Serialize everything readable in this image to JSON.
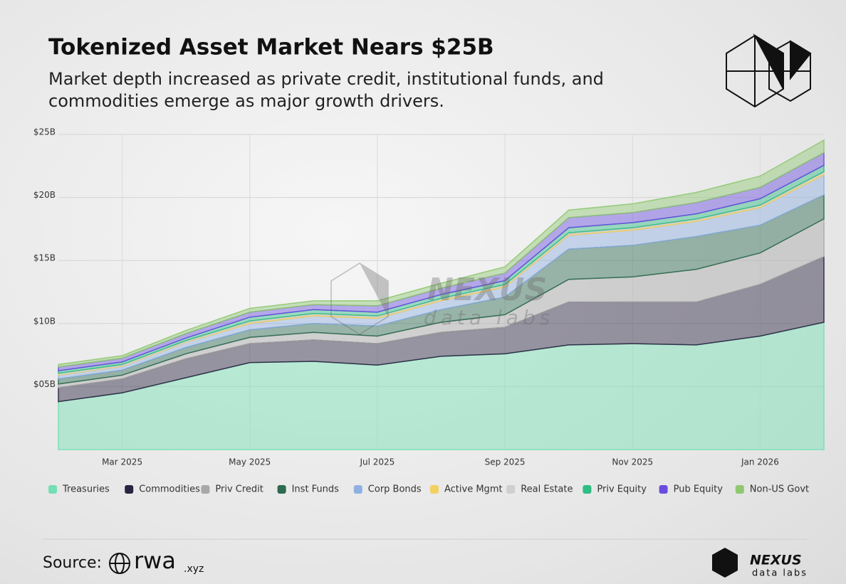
{
  "header": {
    "title": "Tokenized Asset Market Nears $25B",
    "subtitle_lines": [
      "Market depth increased as private credit, institutional funds, and",
      "commodities emerge as major growth drivers."
    ]
  },
  "watermark": {
    "brand": "NEXUS",
    "tagline": "data labs"
  },
  "footer": {
    "source_label": "Source:",
    "source_name": "rwa",
    "source_suffix": ".xyz",
    "brand": "NEXUS",
    "tagline": "data labs"
  },
  "chart_data": {
    "type": "stacked_area",
    "categories": [
      null,
      "Mar 2025",
      null,
      "May 2025",
      null,
      "Jul 2025",
      null,
      "Sep 2025",
      null,
      "Nov 2025",
      null,
      "Jan 2026",
      null
    ],
    "ylim": [
      0,
      25
    ],
    "yticks": [
      {
        "value": 5,
        "label": "$05B"
      },
      {
        "value": 10,
        "label": "$10B"
      },
      {
        "value": 15,
        "label": "$15B"
      },
      {
        "value": 20,
        "label": "$20B"
      },
      {
        "value": 25,
        "label": "$25B"
      }
    ],
    "grid": true,
    "legend": "bottom",
    "series": [
      {
        "name": "Treasuries",
        "color": "#74dfb4",
        "values": [
          3.8,
          4.5,
          5.7,
          6.9,
          7.0,
          6.7,
          7.4,
          7.6,
          8.3,
          8.4,
          8.3,
          9.0,
          10.1
        ]
      },
      {
        "name": "Commodities",
        "color": "#2a2440",
        "values": [
          1.1,
          1.1,
          1.5,
          1.5,
          1.7,
          1.7,
          1.9,
          2.1,
          3.4,
          3.3,
          3.4,
          4.1,
          5.2
        ]
      },
      {
        "name": "Priv Credit",
        "color": "#a8a8a8",
        "values": [
          0.3,
          0.3,
          0.4,
          0.5,
          0.6,
          0.6,
          0.8,
          1.0,
          1.8,
          2.0,
          2.6,
          2.5,
          3.0
        ]
      },
      {
        "name": "Inst Funds",
        "color": "#2d6a50",
        "values": [
          0.4,
          0.4,
          0.5,
          0.6,
          0.7,
          0.8,
          1.0,
          1.4,
          2.4,
          2.5,
          2.6,
          2.2,
          1.9
        ]
      },
      {
        "name": "Corp Bonds",
        "color": "#8fb0e2",
        "values": [
          0.3,
          0.3,
          0.4,
          0.5,
          0.6,
          0.6,
          0.7,
          0.8,
          1.1,
          1.2,
          1.2,
          1.4,
          1.6
        ]
      },
      {
        "name": "Active Mgmt",
        "color": "#f2d062",
        "values": [
          0.05,
          0.05,
          0.05,
          0.1,
          0.1,
          0.1,
          0.1,
          0.1,
          0.1,
          0.1,
          0.1,
          0.1,
          0.15
        ]
      },
      {
        "name": "Real Estate",
        "color": "#cfcfcf",
        "values": [
          0.1,
          0.1,
          0.1,
          0.1,
          0.1,
          0.1,
          0.1,
          0.1,
          0.1,
          0.1,
          0.1,
          0.1,
          0.1
        ]
      },
      {
        "name": "Priv Equity",
        "color": "#2ebd85",
        "values": [
          0.2,
          0.2,
          0.2,
          0.3,
          0.3,
          0.3,
          0.3,
          0.3,
          0.4,
          0.4,
          0.4,
          0.5,
          0.5
        ]
      },
      {
        "name": "Pub Equity",
        "color": "#6a4de0",
        "values": [
          0.3,
          0.3,
          0.35,
          0.4,
          0.4,
          0.5,
          0.5,
          0.6,
          0.8,
          0.8,
          0.9,
          0.9,
          1.0
        ]
      },
      {
        "name": "Non-US Govt",
        "color": "#8fc870",
        "values": [
          0.2,
          0.2,
          0.25,
          0.3,
          0.3,
          0.4,
          0.4,
          0.5,
          0.6,
          0.7,
          0.8,
          0.9,
          1.0
        ]
      }
    ]
  }
}
